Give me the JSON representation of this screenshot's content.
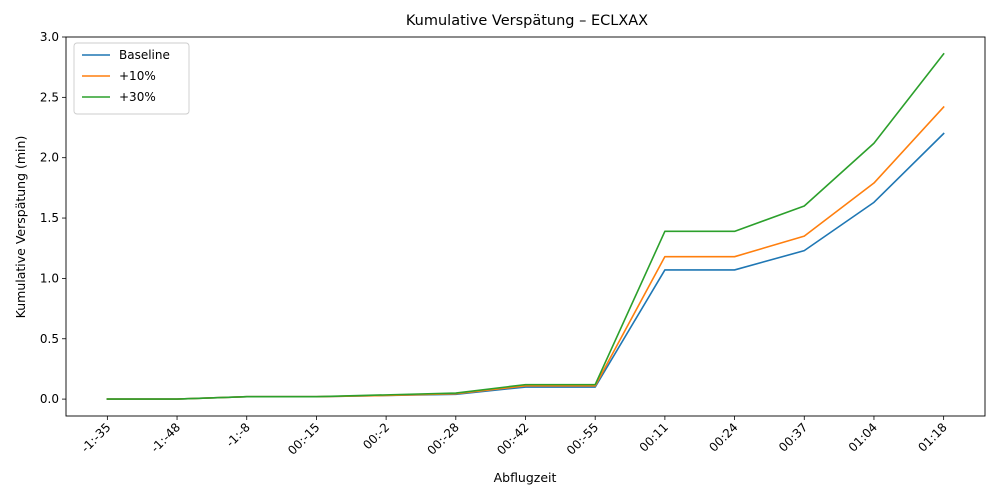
{
  "chart_data": {
    "type": "line",
    "title": "Kumulative Verspätung – ECLXAX",
    "xlabel": "Abflugzeit",
    "ylabel": "Kumulative Verspätung (min)",
    "categories": [
      "-1:-35",
      "-1:-48",
      "-1:-8",
      "00:-15",
      "00:-2",
      "00:-28",
      "00:-42",
      "00:-55",
      "00:11",
      "00:24",
      "00:37",
      "01:04",
      "01:18"
    ],
    "ylim": [
      -0.14,
      3.0
    ],
    "yticks": [
      0.0,
      0.5,
      1.0,
      1.5,
      2.0,
      2.5,
      3.0
    ],
    "ytick_labels": [
      "0.0",
      "0.5",
      "1.0",
      "1.5",
      "2.0",
      "2.5",
      "3.0"
    ],
    "grid": false,
    "legend_position": "top-left",
    "series": [
      {
        "name": "Baseline",
        "color": "#1f77b4",
        "values": [
          0.0,
          0.0,
          0.02,
          0.02,
          0.03,
          0.04,
          0.1,
          0.1,
          1.07,
          1.07,
          1.23,
          1.63,
          2.2
        ]
      },
      {
        "name": "+10%",
        "color": "#ff7f0e",
        "values": [
          0.0,
          0.0,
          0.02,
          0.02,
          0.03,
          0.045,
          0.11,
          0.11,
          1.18,
          1.18,
          1.35,
          1.79,
          2.42
        ]
      },
      {
        "name": "+30%",
        "color": "#2ca02c",
        "values": [
          0.0,
          0.0,
          0.02,
          0.02,
          0.035,
          0.05,
          0.12,
          0.12,
          1.39,
          1.39,
          1.6,
          2.12,
          2.86
        ]
      }
    ]
  }
}
